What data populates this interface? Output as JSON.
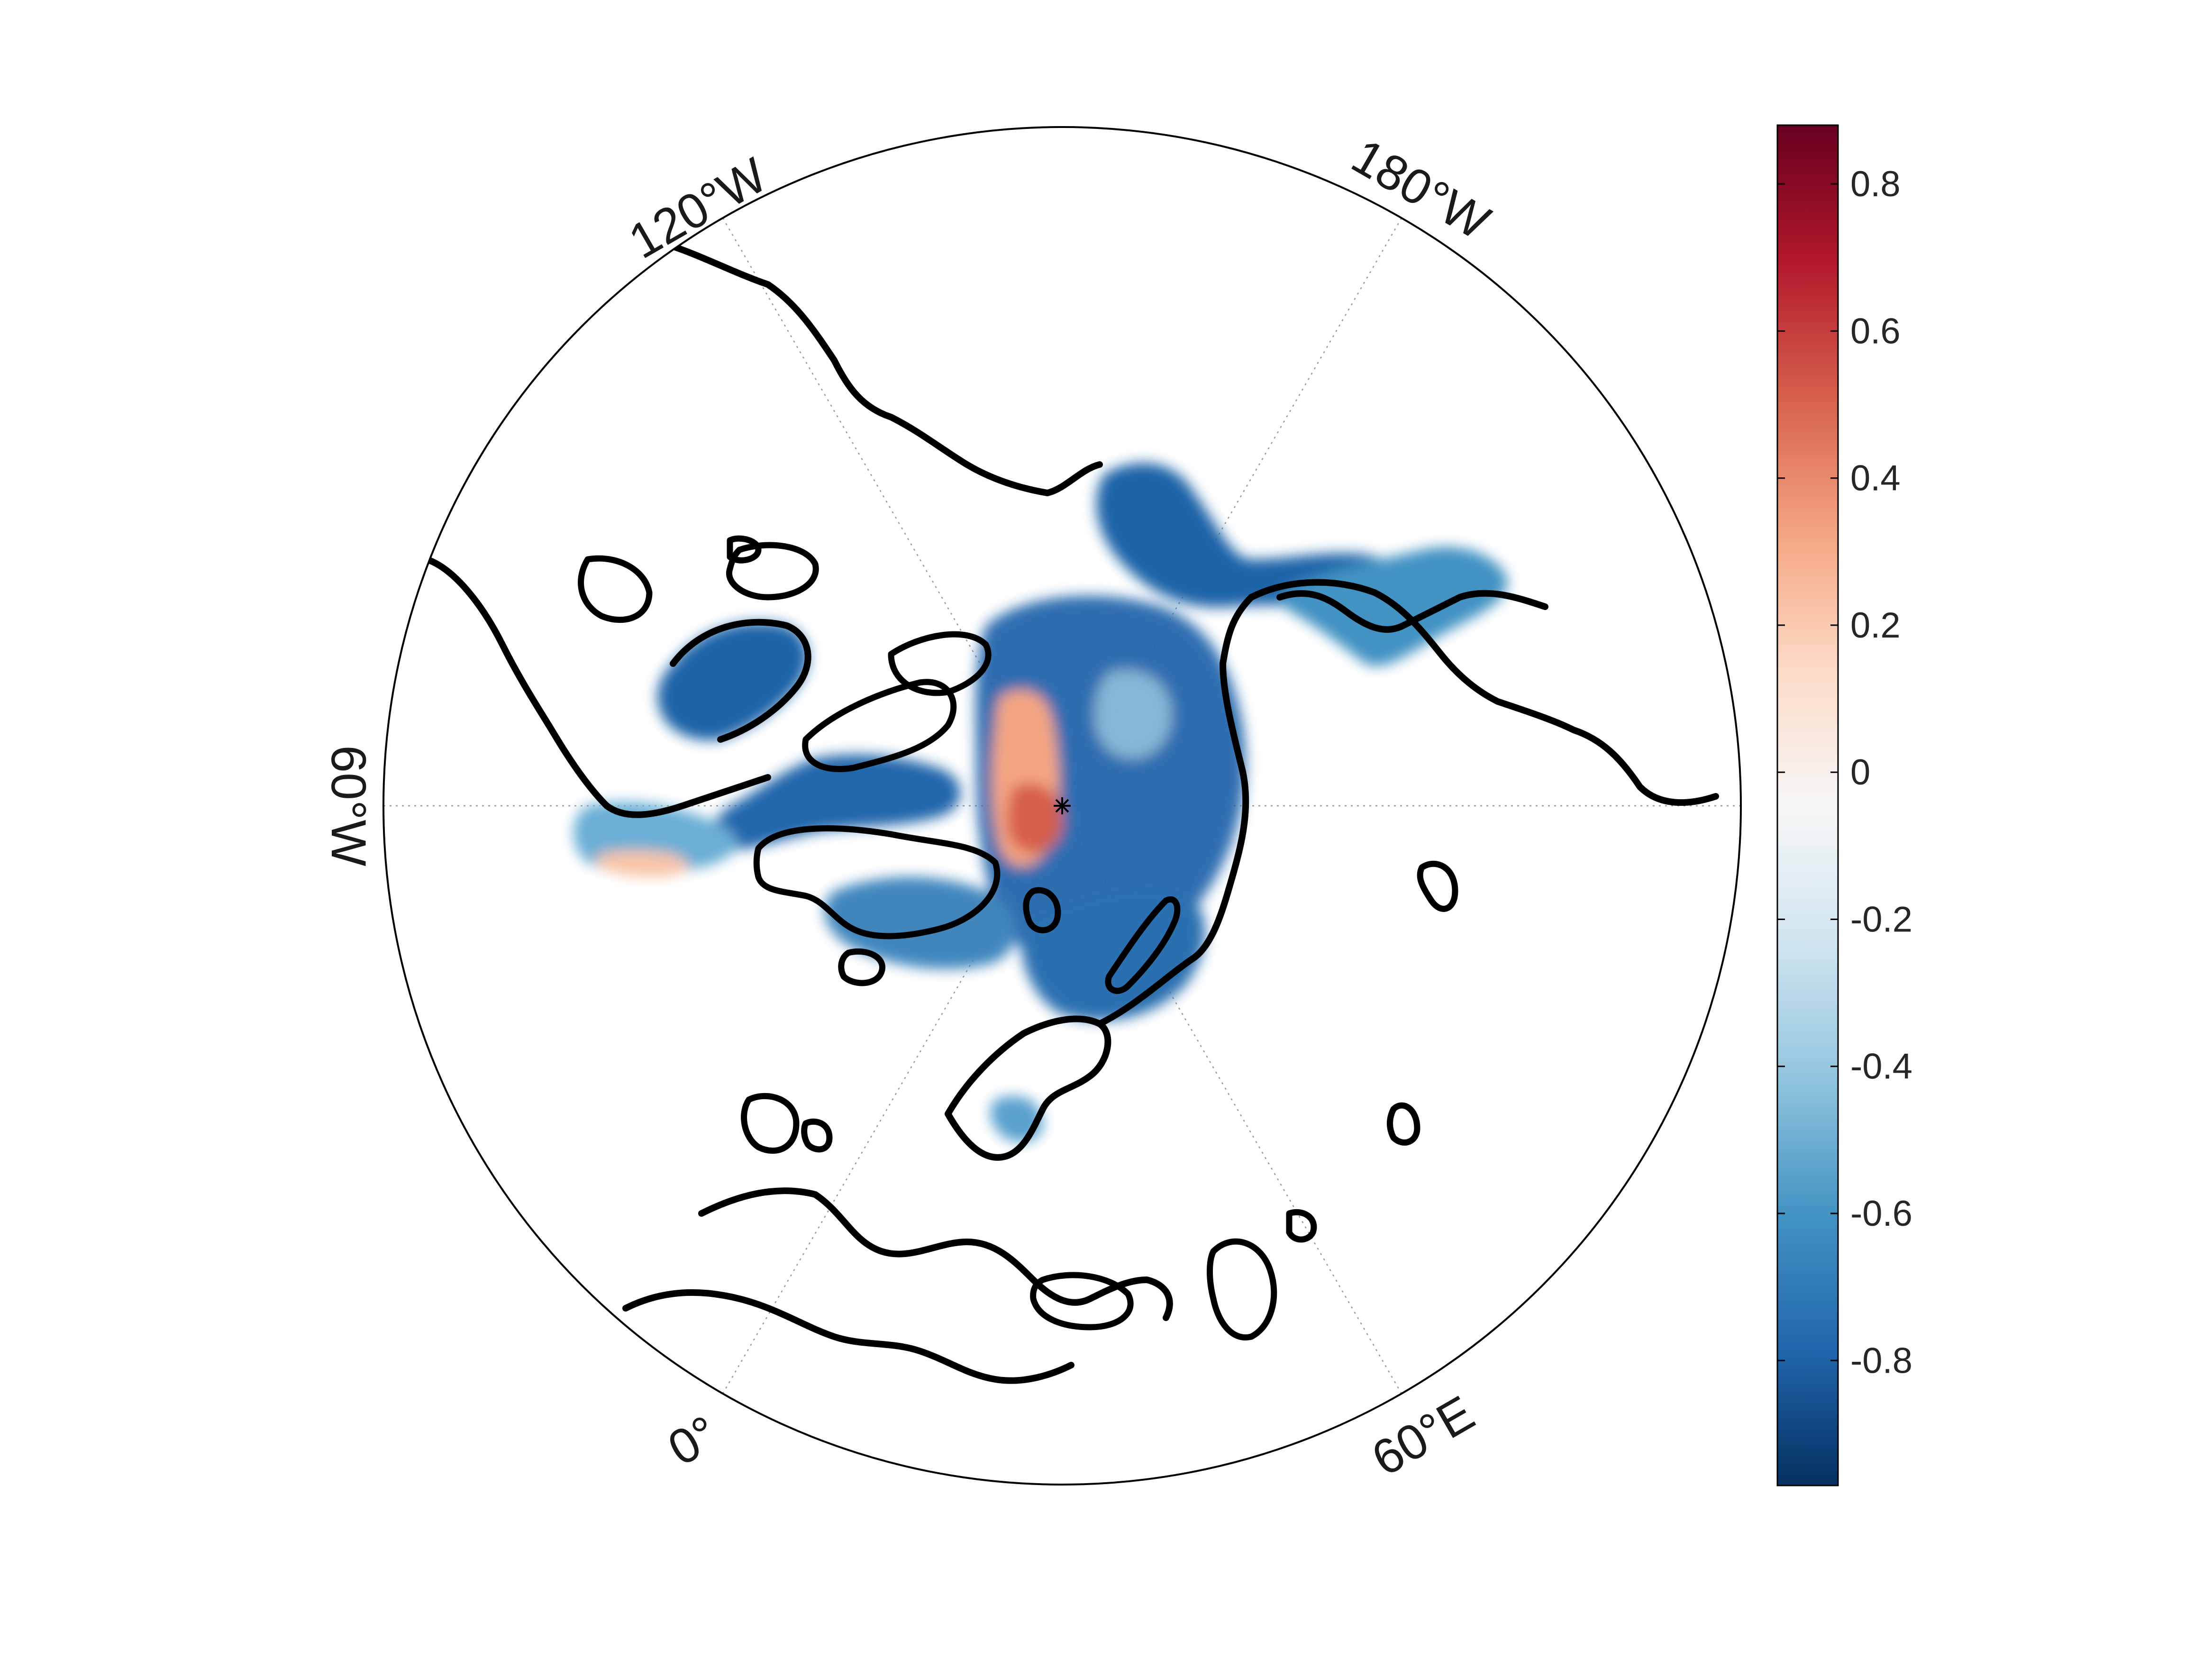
{
  "map": {
    "projection": "north-polar-stereographic",
    "pole_marker": "*",
    "longitude_labels": [
      {
        "id": "lon-120w",
        "text": "120°W"
      },
      {
        "id": "lon-180w",
        "text": "180°W"
      },
      {
        "id": "lon-60w",
        "text": "60°W"
      },
      {
        "id": "lon-0",
        "text": "0°"
      },
      {
        "id": "lon-60e",
        "text": "60°E"
      }
    ],
    "field_colors": {
      "strong_negative": "#08306b",
      "negative": "#2166ac",
      "weak_negative": "#92c5de",
      "positive": "#f4a582",
      "strong_positive": "#b2182b"
    }
  },
  "colorbar": {
    "range": [
      -0.97,
      0.88
    ],
    "ticks": [
      {
        "value": 0.8,
        "label": "0.8"
      },
      {
        "value": 0.6,
        "label": "0.6"
      },
      {
        "value": 0.4,
        "label": "0.4"
      },
      {
        "value": 0.2,
        "label": "0.2"
      },
      {
        "value": 0.0,
        "label": "0"
      },
      {
        "value": -0.2,
        "label": "-0.2"
      },
      {
        "value": -0.4,
        "label": "-0.4"
      },
      {
        "value": -0.6,
        "label": "-0.6"
      },
      {
        "value": -0.8,
        "label": "-0.8"
      }
    ],
    "colormap": [
      "#053061",
      "#2166ac",
      "#4393c3",
      "#92c5de",
      "#d1e5f0",
      "#f7f7f7",
      "#fddbc7",
      "#f4a582",
      "#d6604d",
      "#b2182b",
      "#67001f"
    ]
  }
}
